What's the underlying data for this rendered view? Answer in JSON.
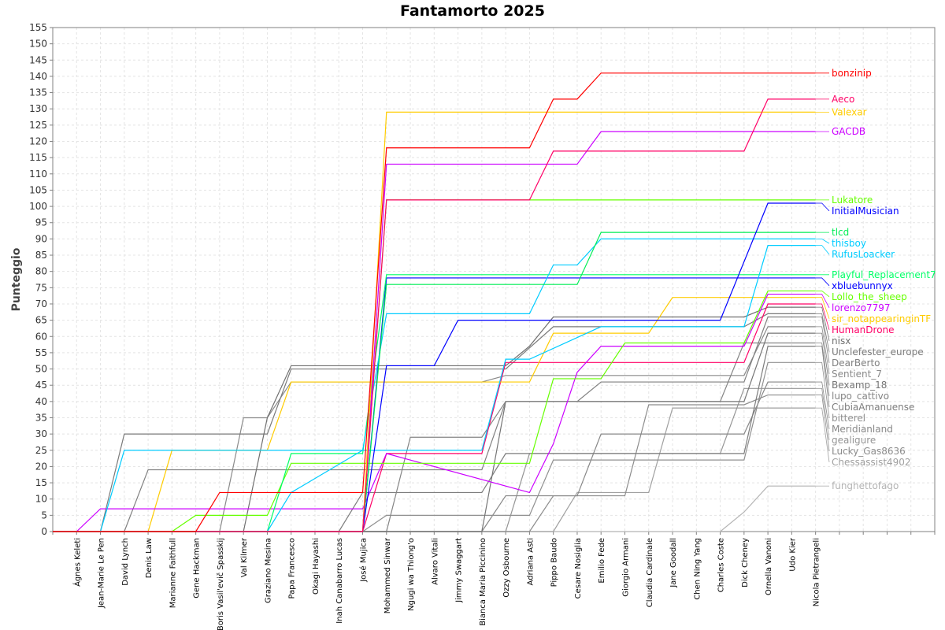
{
  "chart_data": {
    "type": "line",
    "title": "Fantamorto 2025",
    "xlabel": "",
    "ylabel": "Punteggio",
    "ylim": [
      0,
      155
    ],
    "ytick_step": 5,
    "grid": true,
    "legend": "inline-right",
    "categories": [
      "",
      "Ágnes Keleti",
      "Jean-Marie Le Pen",
      "David Lynch",
      "Denis Law",
      "Marianne Faithfull",
      "Gene Hackman",
      "Boris Vasil'evič Spasskij",
      "Val Kilmer",
      "Graziano Mesina",
      "Papa Francesco",
      "Okagi Hayashi",
      "Inah Canabarro Lucas",
      "José Mujica",
      "Mohammed Sinwar",
      "Ngugi wa Thiong'o",
      "Alvaro Vitali",
      "Jimmy Swaggart",
      "Bianca Maria Piccinino",
      "Ozzy Osbourne",
      "Adriana Asti",
      "Pippo Baudo",
      "Cesare Nosiglia",
      "Emilio Fede",
      "Giorgio Armani",
      "Claudia Cardinale",
      "Jane Goodall",
      "Chen Ning Yang",
      "Charles Coste",
      "Dick Cheney",
      "Ornella Vanoni",
      "Udo Kier",
      "Nicola Pietrangeli",
      "",
      "",
      "",
      "",
      ""
    ],
    "series": [
      {
        "name": "bonzinip",
        "color": "#ff0000",
        "points": [
          [
            0,
            0
          ],
          [
            6,
            0
          ],
          [
            7,
            12
          ],
          [
            13,
            12
          ],
          [
            14,
            118
          ],
          [
            20,
            118
          ],
          [
            21,
            133
          ],
          [
            22,
            133
          ],
          [
            23,
            141
          ],
          [
            32,
            141
          ]
        ]
      },
      {
        "name": "Aeco",
        "color": "#ff0066",
        "points": [
          [
            0,
            0
          ],
          [
            13,
            0
          ],
          [
            14,
            102
          ],
          [
            20,
            102
          ],
          [
            21,
            117
          ],
          [
            29,
            117
          ],
          [
            30,
            133
          ],
          [
            32,
            133
          ]
        ]
      },
      {
        "name": "Valexar",
        "color": "#ffcc00",
        "points": [
          [
            0,
            0
          ],
          [
            13,
            0
          ],
          [
            14,
            129
          ],
          [
            32,
            129
          ]
        ]
      },
      {
        "name": "GACDB",
        "color": "#cc00ff",
        "points": [
          [
            0,
            0
          ],
          [
            13,
            0
          ],
          [
            14,
            113
          ],
          [
            22,
            113
          ],
          [
            23,
            123
          ],
          [
            32,
            123
          ]
        ]
      },
      {
        "name": "Lukatore",
        "color": "#66ff00",
        "points": [
          [
            0,
            0
          ],
          [
            13,
            0
          ],
          [
            14,
            102
          ],
          [
            32,
            102
          ]
        ]
      },
      {
        "name": "InitialMusician",
        "color": "#0000ff",
        "points": [
          [
            0,
            0
          ],
          [
            13,
            0
          ],
          [
            14,
            51
          ],
          [
            16,
            51
          ],
          [
            17,
            65
          ],
          [
            28,
            65
          ],
          [
            30,
            101
          ],
          [
            32,
            101
          ]
        ]
      },
      {
        "name": "tlcd",
        "color": "#00ee55",
        "points": [
          [
            0,
            0
          ],
          [
            13,
            0
          ],
          [
            14,
            76
          ],
          [
            22,
            76
          ],
          [
            23,
            92
          ],
          [
            32,
            92
          ]
        ]
      },
      {
        "name": "thisboy",
        "color": "#00ccff",
        "points": [
          [
            0,
            0
          ],
          [
            2,
            0
          ],
          [
            3,
            25
          ],
          [
            13,
            25
          ],
          [
            14,
            67
          ],
          [
            20,
            67
          ],
          [
            21,
            82
          ],
          [
            22,
            82
          ],
          [
            23,
            90
          ],
          [
            32,
            90
          ]
        ]
      },
      {
        "name": "RufusLoacker",
        "color": "#00ccff",
        "points": [
          [
            0,
            0
          ],
          [
            9,
            0
          ],
          [
            10,
            12
          ],
          [
            13,
            25
          ],
          [
            18,
            25
          ],
          [
            19,
            53
          ],
          [
            20,
            53
          ],
          [
            23,
            63
          ],
          [
            29,
            63
          ],
          [
            30,
            88
          ],
          [
            32,
            88
          ]
        ]
      },
      {
        "name": "Playful_Replacement7",
        "color": "#00ff66",
        "points": [
          [
            0,
            0
          ],
          [
            9,
            0
          ],
          [
            10,
            24
          ],
          [
            13,
            24
          ],
          [
            14,
            79
          ],
          [
            32,
            79
          ]
        ]
      },
      {
        "name": "xbluebunnyx",
        "color": "#0000ff",
        "points": [
          [
            0,
            0
          ],
          [
            13,
            0
          ],
          [
            14,
            78
          ],
          [
            32,
            78
          ]
        ]
      },
      {
        "name": "Lollo_the_sheep",
        "color": "#66ff00",
        "points": [
          [
            0,
            0
          ],
          [
            5,
            0
          ],
          [
            6,
            5
          ],
          [
            9,
            5
          ],
          [
            10,
            21
          ],
          [
            20,
            21
          ],
          [
            21,
            47
          ],
          [
            23,
            47
          ],
          [
            24,
            58
          ],
          [
            29,
            58
          ],
          [
            30,
            74
          ],
          [
            32,
            74
          ]
        ]
      },
      {
        "name": "lorenzo7797",
        "color": "#cc00ff",
        "points": [
          [
            0,
            0
          ],
          [
            1,
            0
          ],
          [
            2,
            7
          ],
          [
            13,
            7
          ],
          [
            14,
            24
          ],
          [
            20,
            12
          ],
          [
            21,
            27
          ],
          [
            22,
            49
          ],
          [
            23,
            57
          ],
          [
            29,
            57
          ],
          [
            30,
            73
          ],
          [
            32,
            73
          ]
        ]
      },
      {
        "name": "sir_notappearinginTF",
        "color": "#ffcc00",
        "points": [
          [
            0,
            0
          ],
          [
            4,
            0
          ],
          [
            5,
            25
          ],
          [
            9,
            25
          ],
          [
            10,
            46
          ],
          [
            20,
            46
          ],
          [
            21,
            61
          ],
          [
            25,
            61
          ],
          [
            26,
            72
          ],
          [
            32,
            72
          ]
        ]
      },
      {
        "name": "HumanDrone",
        "color": "#ff0066",
        "points": [
          [
            0,
            0
          ],
          [
            13,
            0
          ],
          [
            14,
            24
          ],
          [
            18,
            24
          ],
          [
            19,
            52
          ],
          [
            29,
            52
          ],
          [
            30,
            70
          ],
          [
            32,
            70
          ]
        ]
      },
      {
        "name": "nisx",
        "color": "#707070",
        "points": [
          [
            0,
            0
          ],
          [
            8,
            0
          ],
          [
            9,
            35
          ],
          [
            10,
            51
          ],
          [
            19,
            51
          ],
          [
            20,
            57
          ],
          [
            21,
            66
          ],
          [
            29,
            66
          ],
          [
            30,
            69
          ],
          [
            32,
            69
          ]
        ]
      },
      {
        "name": "Unclefester_europe",
        "color": "#7a7a7a",
        "points": [
          [
            0,
            0
          ],
          [
            2,
            0
          ],
          [
            3,
            30
          ],
          [
            9,
            30
          ],
          [
            10,
            50
          ],
          [
            19,
            50
          ],
          [
            21,
            63
          ],
          [
            29,
            63
          ],
          [
            30,
            67
          ],
          [
            32,
            67
          ]
        ]
      },
      {
        "name": "DearBerto",
        "color": "#808080",
        "points": [
          [
            0,
            0
          ],
          [
            3,
            0
          ],
          [
            4,
            19
          ],
          [
            18,
            19
          ],
          [
            19,
            40
          ],
          [
            22,
            40
          ],
          [
            23,
            46
          ],
          [
            29,
            46
          ],
          [
            30,
            66
          ],
          [
            32,
            66
          ]
        ]
      },
      {
        "name": "Sentient_7",
        "color": "#8a8a8a",
        "points": [
          [
            0,
            0
          ],
          [
            7,
            0
          ],
          [
            8,
            35
          ],
          [
            9,
            35
          ],
          [
            10,
            46
          ],
          [
            18,
            46
          ],
          [
            19,
            48
          ],
          [
            29,
            48
          ],
          [
            30,
            63
          ],
          [
            32,
            63
          ]
        ]
      },
      {
        "name": "Bexamp_18",
        "color": "#757575",
        "points": [
          [
            0,
            0
          ],
          [
            18,
            0
          ],
          [
            19,
            40
          ],
          [
            29,
            40
          ],
          [
            30,
            61
          ],
          [
            32,
            61
          ]
        ]
      },
      {
        "name": "lupo_cattivo",
        "color": "#858585",
        "points": [
          [
            0,
            0
          ],
          [
            14,
            0
          ],
          [
            15,
            29
          ],
          [
            18,
            29
          ],
          [
            19,
            40
          ],
          [
            28,
            40
          ],
          [
            29,
            58
          ],
          [
            32,
            58
          ]
        ]
      },
      {
        "name": "CubiaAmanuense",
        "color": "#7d7d7d",
        "points": [
          [
            0,
            0
          ],
          [
            12,
            0
          ],
          [
            13,
            12
          ],
          [
            18,
            12
          ],
          [
            19,
            24
          ],
          [
            29,
            24
          ],
          [
            30,
            57
          ],
          [
            32,
            57
          ]
        ]
      },
      {
        "name": "bitterel",
        "color": "#909090",
        "points": [
          [
            0,
            0
          ],
          [
            13,
            0
          ],
          [
            14,
            5
          ],
          [
            20,
            5
          ],
          [
            21,
            22
          ],
          [
            29,
            22
          ],
          [
            30,
            52
          ],
          [
            32,
            52
          ]
        ]
      },
      {
        "name": "Meridianland",
        "color": "#888888",
        "points": [
          [
            0,
            0
          ],
          [
            18,
            0
          ],
          [
            19,
            11
          ],
          [
            22,
            11
          ],
          [
            23,
            30
          ],
          [
            29,
            30
          ],
          [
            30,
            46
          ],
          [
            32,
            46
          ]
        ]
      },
      {
        "name": "gealigure",
        "color": "#959595",
        "points": [
          [
            0,
            0
          ],
          [
            19,
            0
          ],
          [
            20,
            24
          ],
          [
            28,
            24
          ],
          [
            29,
            44
          ],
          [
            32,
            44
          ]
        ]
      },
      {
        "name": "Lucky_Gas8636",
        "color": "#8c8c8c",
        "points": [
          [
            0,
            0
          ],
          [
            20,
            0
          ],
          [
            21,
            11
          ],
          [
            24,
            11
          ],
          [
            25,
            39
          ],
          [
            29,
            39
          ],
          [
            30,
            42
          ],
          [
            32,
            42
          ]
        ]
      },
      {
        "name": "Chessassist4902",
        "color": "#a0a0a0",
        "points": [
          [
            0,
            0
          ],
          [
            21,
            0
          ],
          [
            22,
            12
          ],
          [
            25,
            12
          ],
          [
            26,
            38
          ],
          [
            32,
            38
          ]
        ]
      },
      {
        "name": "funghettofago",
        "color": "#b4b4b4",
        "points": [
          [
            0,
            0
          ],
          [
            28,
            0
          ],
          [
            29,
            6
          ],
          [
            30,
            14
          ],
          [
            32,
            14
          ]
        ]
      }
    ]
  }
}
